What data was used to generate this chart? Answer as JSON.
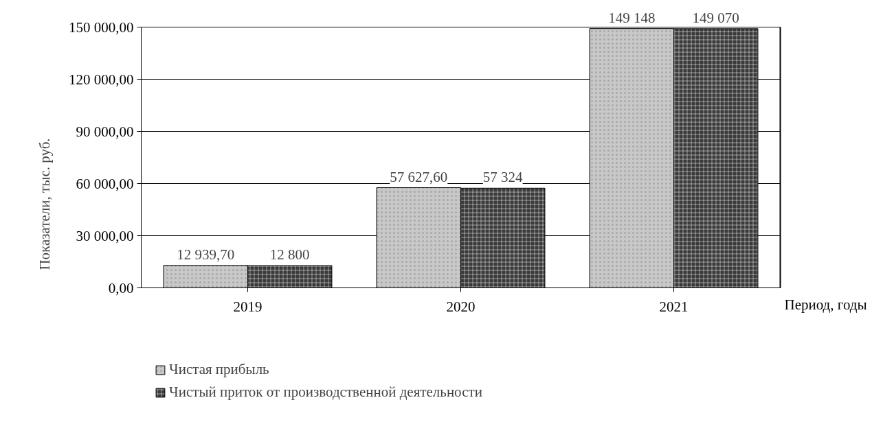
{
  "chart_data": {
    "type": "bar",
    "xlabel": "Период, годы",
    "ylabel": "Показатели, тыс. руб.",
    "categories": [
      "2019",
      "2020",
      "2021"
    ],
    "series": [
      {
        "name": "Чистая прибыль",
        "color": "#c8c8c8",
        "values": [
          12939.7,
          57627.6,
          149148
        ],
        "value_labels": [
          "12 939,70",
          "57 627,60",
          "149 148"
        ]
      },
      {
        "name": "Чистый приток от производственной деятельности",
        "color": "#3a3a3a",
        "values": [
          12800,
          57324,
          149070
        ],
        "value_labels": [
          "12 800",
          "57 324",
          "149 070"
        ]
      }
    ],
    "ylim": [
      0,
      150000
    ],
    "yticks": [
      {
        "value": 0,
        "label": "0,00"
      },
      {
        "value": 30000,
        "label": "30 000,00"
      },
      {
        "value": 60000,
        "label": "60 000,00"
      },
      {
        "value": 90000,
        "label": "90 000,00"
      },
      {
        "value": 120000,
        "label": "120 000,00"
      },
      {
        "value": 150000,
        "label": "150 000,00"
      }
    ],
    "grid": "y",
    "legend": "bottom"
  }
}
